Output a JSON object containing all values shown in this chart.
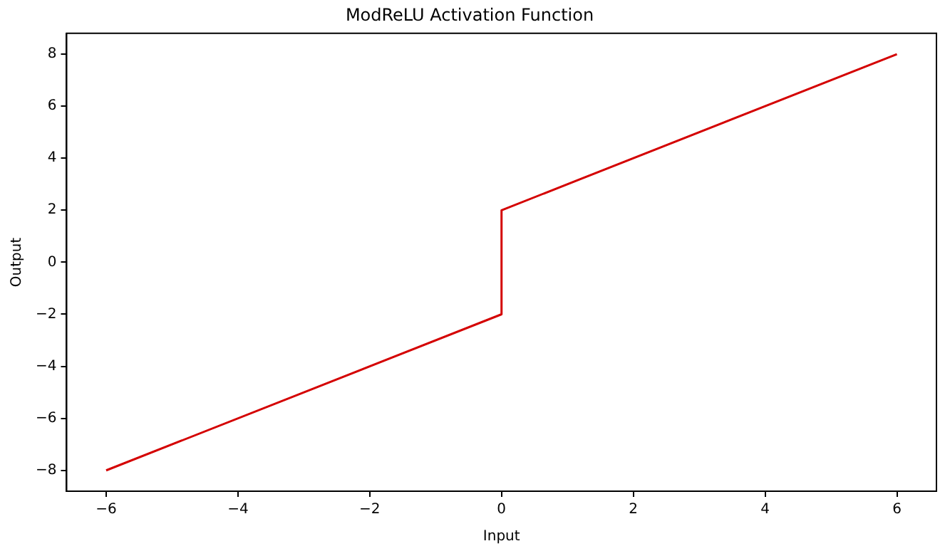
{
  "chart_data": {
    "type": "line",
    "title": "ModReLU Activation Function",
    "xlabel": "Input",
    "ylabel": "Output",
    "series": [
      {
        "color": "#d40000",
        "x": [
          -6,
          0,
          0,
          6
        ],
        "values": [
          -8,
          -2,
          2,
          8
        ]
      }
    ],
    "xlim": [
      -6.6,
      6.6
    ],
    "xticks": [
      {
        "value": -6,
        "label": "−6"
      },
      {
        "value": -4,
        "label": "−4"
      },
      {
        "value": -2,
        "label": "−2"
      },
      0,
      2,
      4,
      6
    ],
    "ylim": [
      -8.8,
      8.8
    ],
    "yticks": [
      {
        "value": -8,
        "label": "−8"
      },
      {
        "value": -6,
        "label": "−6"
      },
      {
        "value": -4,
        "label": "−4"
      },
      {
        "value": -2,
        "label": "−2"
      },
      0,
      2,
      4,
      6,
      8
    ],
    "grid": false,
    "legend": false,
    "marker": "none",
    "line_style": "solid"
  }
}
